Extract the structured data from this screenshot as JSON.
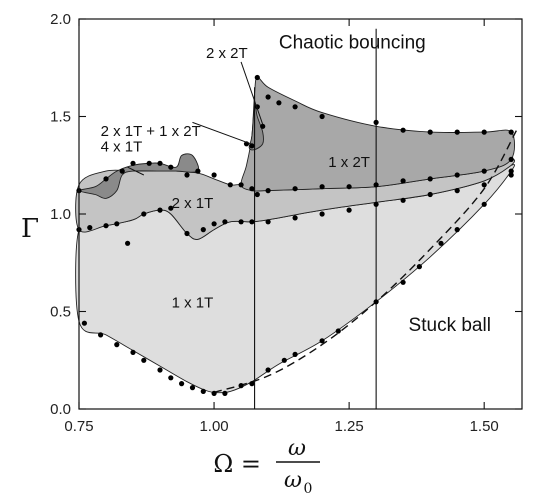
{
  "chart_data": {
    "type": "area",
    "title": "",
    "xlabel": {
      "lhs": "Ω =",
      "numerator": "ω",
      "denominator": "ω",
      "denominator_sub": "0"
    },
    "ylabel": "Γ",
    "xlim": [
      0.75,
      1.57
    ],
    "ylim": [
      0.0,
      2.0
    ],
    "x_ticks": [
      "0.75",
      "1.00",
      "1.25",
      "1.50"
    ],
    "y_ticks": [
      "0.0",
      "0.5",
      "1.0",
      "1.5",
      "2.0"
    ],
    "grid": false,
    "legend": "none",
    "vertical_lines_x": [
      1.075,
      1.3
    ],
    "regions": [
      {
        "label": "1 x 1T",
        "shade": "#dedede",
        "boundary": [
          [
            0.75,
            0.45
          ],
          [
            0.8,
            0.38
          ],
          [
            0.85,
            0.3
          ],
          [
            0.9,
            0.22
          ],
          [
            0.95,
            0.14
          ],
          [
            0.98,
            0.1
          ],
          [
            1.0,
            0.085
          ],
          [
            1.03,
            0.09
          ],
          [
            1.07,
            0.14
          ],
          [
            1.12,
            0.23
          ],
          [
            1.2,
            0.35
          ],
          [
            1.3,
            0.55
          ],
          [
            1.4,
            0.78
          ],
          [
            1.5,
            1.05
          ],
          [
            1.55,
            1.22
          ],
          [
            1.55,
            1.25
          ],
          [
            1.5,
            1.17
          ],
          [
            1.4,
            1.1
          ],
          [
            1.3,
            1.06
          ],
          [
            1.2,
            1.02
          ],
          [
            1.1,
            0.97
          ],
          [
            1.07,
            0.96
          ],
          [
            1.03,
            0.96
          ],
          [
            1.0,
            0.92
          ],
          [
            0.97,
            0.87
          ],
          [
            0.95,
            0.9
          ],
          [
            0.92,
            1.0
          ],
          [
            0.9,
            1.02
          ],
          [
            0.87,
            1.0
          ],
          [
            0.85,
            0.97
          ],
          [
            0.8,
            0.94
          ],
          [
            0.75,
            0.92
          ]
        ]
      },
      {
        "label": "2 x 1T",
        "shade": "#c4c4c4",
        "boundary": [
          [
            0.75,
            0.92
          ],
          [
            0.8,
            0.94
          ],
          [
            0.85,
            0.97
          ],
          [
            0.87,
            1.0
          ],
          [
            0.9,
            1.02
          ],
          [
            0.92,
            1.0
          ],
          [
            0.95,
            0.9
          ],
          [
            0.97,
            0.87
          ],
          [
            1.0,
            0.92
          ],
          [
            1.03,
            0.96
          ],
          [
            1.07,
            0.96
          ],
          [
            1.1,
            0.97
          ],
          [
            1.2,
            1.02
          ],
          [
            1.3,
            1.06
          ],
          [
            1.4,
            1.1
          ],
          [
            1.5,
            1.17
          ],
          [
            1.55,
            1.25
          ],
          [
            1.55,
            1.28
          ],
          [
            1.5,
            1.22
          ],
          [
            1.4,
            1.18
          ],
          [
            1.3,
            1.14
          ],
          [
            1.2,
            1.13
          ],
          [
            1.1,
            1.12
          ],
          [
            1.07,
            1.12
          ],
          [
            1.05,
            1.15
          ],
          [
            1.03,
            1.15
          ],
          [
            1.0,
            1.18
          ],
          [
            0.97,
            1.21
          ],
          [
            0.93,
            1.22
          ],
          [
            0.9,
            1.22
          ],
          [
            0.85,
            1.22
          ],
          [
            0.8,
            1.22
          ],
          [
            0.75,
            1.15
          ]
        ]
      },
      {
        "label": "1 x 2T",
        "shade": "#a8a8a8",
        "boundary": [
          [
            1.05,
            1.15
          ],
          [
            1.07,
            1.12
          ],
          [
            1.1,
            1.12
          ],
          [
            1.2,
            1.13
          ],
          [
            1.3,
            1.14
          ],
          [
            1.4,
            1.18
          ],
          [
            1.5,
            1.22
          ],
          [
            1.55,
            1.28
          ],
          [
            1.55,
            1.42
          ],
          [
            1.5,
            1.42
          ],
          [
            1.4,
            1.42
          ],
          [
            1.3,
            1.45
          ],
          [
            1.2,
            1.52
          ],
          [
            1.15,
            1.58
          ],
          [
            1.1,
            1.65
          ],
          [
            1.08,
            1.7
          ],
          [
            1.075,
            1.62
          ],
          [
            1.07,
            1.4
          ],
          [
            1.06,
            1.25
          ]
        ]
      },
      {
        "label": "4 x 1T",
        "shade": "#8a8a8a",
        "boundary": [
          [
            0.75,
            1.12
          ],
          [
            0.78,
            1.14
          ],
          [
            0.8,
            1.18
          ],
          [
            0.82,
            1.22
          ],
          [
            0.85,
            1.25
          ],
          [
            0.88,
            1.26
          ],
          [
            0.9,
            1.26
          ],
          [
            0.93,
            1.24
          ],
          [
            0.94,
            1.3
          ],
          [
            0.96,
            1.3
          ],
          [
            0.97,
            1.22
          ],
          [
            0.93,
            1.22
          ],
          [
            0.9,
            1.22
          ],
          [
            0.85,
            1.22
          ],
          [
            0.83,
            1.2
          ],
          [
            0.82,
            1.12
          ],
          [
            0.8,
            1.08
          ],
          [
            0.78,
            1.1
          ]
        ]
      },
      {
        "label": "2 x 2T",
        "shade": "#8a8a8a",
        "boundary": [
          [
            1.065,
            1.34
          ],
          [
            1.07,
            1.4
          ],
          [
            1.075,
            1.56
          ],
          [
            1.08,
            1.5
          ],
          [
            1.09,
            1.42
          ],
          [
            1.09,
            1.36
          ],
          [
            1.075,
            1.33
          ]
        ]
      }
    ],
    "dashed_curve": [
      [
        1.0,
        0.085
      ],
      [
        1.1,
        0.17
      ],
      [
        1.2,
        0.33
      ],
      [
        1.3,
        0.55
      ],
      [
        1.4,
        0.82
      ],
      [
        1.5,
        1.13
      ],
      [
        1.56,
        1.43
      ]
    ],
    "points": [
      [
        0.76,
        0.44
      ],
      [
        0.79,
        0.38
      ],
      [
        0.82,
        0.33
      ],
      [
        0.85,
        0.29
      ],
      [
        0.87,
        0.25
      ],
      [
        0.9,
        0.2
      ],
      [
        0.92,
        0.16
      ],
      [
        0.94,
        0.13
      ],
      [
        0.96,
        0.11
      ],
      [
        0.98,
        0.09
      ],
      [
        1.0,
        0.08
      ],
      [
        1.02,
        0.08
      ],
      [
        1.05,
        0.12
      ],
      [
        1.07,
        0.13
      ],
      [
        1.1,
        0.2
      ],
      [
        1.13,
        0.25
      ],
      [
        1.15,
        0.28
      ],
      [
        1.2,
        0.35
      ],
      [
        1.23,
        0.4
      ],
      [
        1.3,
        0.55
      ],
      [
        1.35,
        0.65
      ],
      [
        1.38,
        0.73
      ],
      [
        1.42,
        0.85
      ],
      [
        1.45,
        0.92
      ],
      [
        1.5,
        1.05
      ],
      [
        1.55,
        1.22
      ],
      [
        0.75,
        0.92
      ],
      [
        0.77,
        0.93
      ],
      [
        0.8,
        0.94
      ],
      [
        0.82,
        0.95
      ],
      [
        0.84,
        0.85
      ],
      [
        0.87,
        1.0
      ],
      [
        0.9,
        1.02
      ],
      [
        0.92,
        1.03
      ],
      [
        0.95,
        0.9
      ],
      [
        0.98,
        0.92
      ],
      [
        1.0,
        0.95
      ],
      [
        1.02,
        0.96
      ],
      [
        1.05,
        0.96
      ],
      [
        1.07,
        0.96
      ],
      [
        1.1,
        0.96
      ],
      [
        1.15,
        0.98
      ],
      [
        1.2,
        1.0
      ],
      [
        1.25,
        1.02
      ],
      [
        1.3,
        1.05
      ],
      [
        1.35,
        1.07
      ],
      [
        1.4,
        1.1
      ],
      [
        1.45,
        1.12
      ],
      [
        1.5,
        1.15
      ],
      [
        1.55,
        1.2
      ],
      [
        0.75,
        1.12
      ],
      [
        0.8,
        1.18
      ],
      [
        0.83,
        1.22
      ],
      [
        0.85,
        1.26
      ],
      [
        0.88,
        1.26
      ],
      [
        0.9,
        1.26
      ],
      [
        0.92,
        1.24
      ],
      [
        0.95,
        1.2
      ],
      [
        0.97,
        1.22
      ],
      [
        1.0,
        1.2
      ],
      [
        1.03,
        1.15
      ],
      [
        1.05,
        1.15
      ],
      [
        1.07,
        1.13
      ],
      [
        1.08,
        1.1
      ],
      [
        1.1,
        1.12
      ],
      [
        1.15,
        1.13
      ],
      [
        1.2,
        1.14
      ],
      [
        1.25,
        1.14
      ],
      [
        1.3,
        1.15
      ],
      [
        1.35,
        1.17
      ],
      [
        1.4,
        1.18
      ],
      [
        1.45,
        1.2
      ],
      [
        1.5,
        1.22
      ],
      [
        1.55,
        1.28
      ],
      [
        1.06,
        1.36
      ],
      [
        1.07,
        1.35
      ],
      [
        1.08,
        1.55
      ],
      [
        1.08,
        1.7
      ],
      [
        1.1,
        1.6
      ],
      [
        1.12,
        1.57
      ],
      [
        1.15,
        1.55
      ],
      [
        1.2,
        1.5
      ],
      [
        1.3,
        1.47
      ],
      [
        1.35,
        1.43
      ],
      [
        1.4,
        1.42
      ],
      [
        1.45,
        1.42
      ],
      [
        1.5,
        1.42
      ],
      [
        1.55,
        1.42
      ],
      [
        1.09,
        1.45
      ]
    ]
  },
  "annotations": [
    {
      "id": "chaotic",
      "text": "Chaotic bouncing"
    },
    {
      "id": "stuck",
      "text": "Stuck ball"
    },
    {
      "id": "r1x1t",
      "text": "1 x 1T"
    },
    {
      "id": "r2x1t",
      "text": "2 x 1T"
    },
    {
      "id": "r1x2t",
      "text": "1 x 2T"
    },
    {
      "id": "r4x1t",
      "text": "4 x 1T"
    },
    {
      "id": "r2x1t1x2t",
      "text": "2 x 1T + 1 x 2T"
    },
    {
      "id": "r2x2t",
      "text": "2 x 2T"
    }
  ]
}
